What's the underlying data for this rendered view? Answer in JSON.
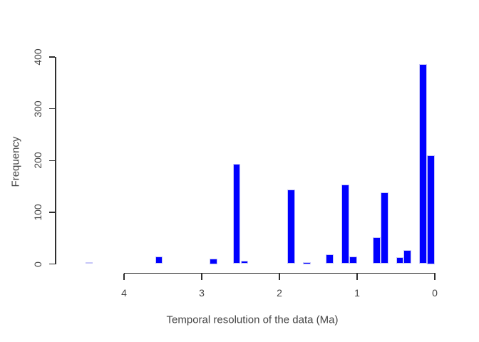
{
  "colors": {
    "background": "#ffffff",
    "bar_fill": "#0000ff",
    "bar_border": "#c6c6f8",
    "axis_line": "#2f2f2f",
    "text": "#454545"
  },
  "chart_data": {
    "type": "bar",
    "chart_kind": "histogram",
    "title": "",
    "xlabel": "Temporal resolution of the data (Ma)",
    "ylabel": "Frequency",
    "x_ticks": [
      4,
      3,
      2,
      1,
      0
    ],
    "y_ticks": [
      0,
      100,
      200,
      300,
      400
    ],
    "x_axis_reversed": true,
    "xlim": [
      4.5,
      0
    ],
    "ylim": [
      0,
      400
    ],
    "grid": false,
    "legend": false,
    "bin_width_ma": 0.1,
    "bars": [
      {
        "bin": [
          4.4,
          4.5
        ],
        "count": 4
      },
      {
        "bin": [
          3.5,
          3.6
        ],
        "count": 14
      },
      {
        "bin": [
          2.8,
          2.9
        ],
        "count": 11
      },
      {
        "bin": [
          2.5,
          2.6
        ],
        "count": 194
      },
      {
        "bin": [
          2.4,
          2.5
        ],
        "count": 6
      },
      {
        "bin": [
          1.8,
          1.9
        ],
        "count": 144
      },
      {
        "bin": [
          1.6,
          1.7
        ],
        "count": 2
      },
      {
        "bin": [
          1.3,
          1.4
        ],
        "count": 18
      },
      {
        "bin": [
          1.1,
          1.2
        ],
        "count": 153
      },
      {
        "bin": [
          1.0,
          1.1
        ],
        "count": 15
      },
      {
        "bin": [
          0.7,
          0.8
        ],
        "count": 52
      },
      {
        "bin": [
          0.6,
          0.7
        ],
        "count": 138
      },
      {
        "bin": [
          0.4,
          0.5
        ],
        "count": 13
      },
      {
        "bin": [
          0.3,
          0.4
        ],
        "count": 27
      },
      {
        "bin": [
          0.1,
          0.2
        ],
        "count": 386
      },
      {
        "bin": [
          0.0,
          0.1
        ],
        "count": 210
      }
    ]
  }
}
